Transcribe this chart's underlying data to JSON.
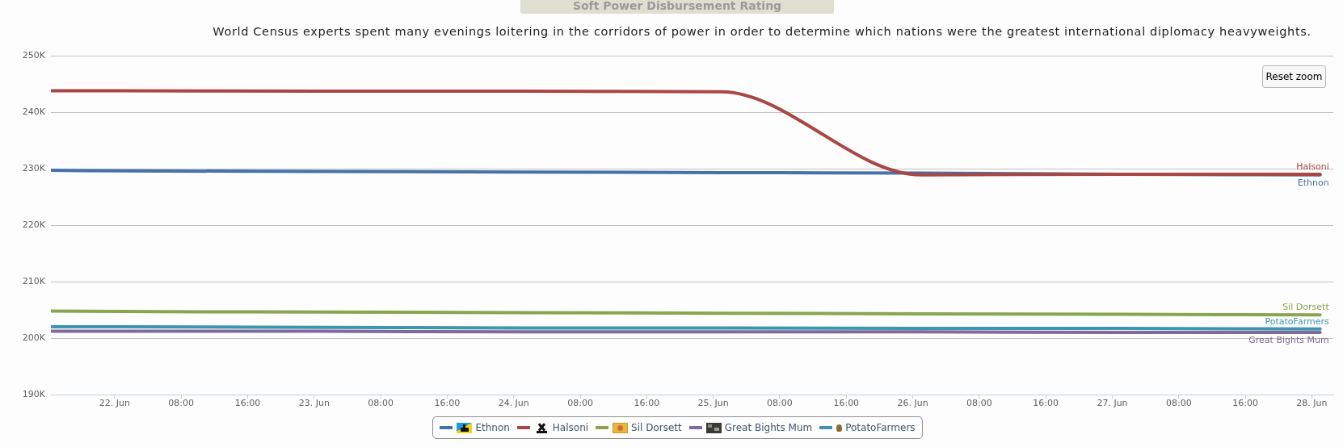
{
  "chart_data": {
    "type": "line",
    "title": "Soft Power Disbursement Rating",
    "subtitle": "World Census experts spent many evenings loitering in the corridors of power in order to determine which nations were the greatest international diplomacy heavyweights.",
    "annotations": [
      "Reset zoom"
    ],
    "x": [
      "--06-21T16:20",
      "--06-22T01:00",
      "--06-23T01:00",
      "--06-24T01:00",
      "--06-25T01:00",
      "--06-26T01:00",
      "--06-27T01:00",
      "--06-28T01:00"
    ],
    "series": [
      {
        "name": "Ethnon",
        "color": "#4572a7",
        "values": [
          229700,
          229600,
          229500,
          229400,
          229300,
          229200,
          229000,
          228900
        ]
      },
      {
        "name": "Halsoni",
        "color": "#aa4643",
        "values": [
          243800,
          243800,
          243700,
          243700,
          243600,
          228900,
          229000,
          229000
        ]
      },
      {
        "name": "Sil Dorsett",
        "color": "#89a54e",
        "values": [
          204800,
          204700,
          204600,
          204500,
          204400,
          204300,
          204200,
          204100
        ]
      },
      {
        "name": "Great Bights Mum",
        "color": "#80699b",
        "values": [
          201200,
          201200,
          201200,
          201100,
          201100,
          201100,
          201000,
          201000
        ]
      },
      {
        "name": "PotatoFarmers",
        "color": "#3d96ae",
        "values": [
          202000,
          202000,
          201900,
          201800,
          201800,
          201700,
          201700,
          201600
        ]
      }
    ],
    "xlim": [
      "--06-21T16:20",
      "--06-28T02:35"
    ],
    "xticks": [
      {
        "value": "--06-22",
        "label": "22. Jun"
      },
      {
        "value": "--06-22T08:00",
        "label": "08:00"
      },
      {
        "value": "--06-22T16:00",
        "label": "16:00"
      },
      {
        "value": "--06-23",
        "label": "23. Jun"
      },
      {
        "value": "--06-23T08:00",
        "label": "08:00"
      },
      {
        "value": "--06-23T16:00",
        "label": "16:00"
      },
      {
        "value": "--06-24",
        "label": "24. Jun"
      },
      {
        "value": "--06-24T08:00",
        "label": "08:00"
      },
      {
        "value": "--06-24T16:00",
        "label": "16:00"
      },
      {
        "value": "--06-25",
        "label": "25. Jun"
      },
      {
        "value": "--06-25T08:00",
        "label": "08:00"
      },
      {
        "value": "--06-25T16:00",
        "label": "16:00"
      },
      {
        "value": "--06-26",
        "label": "26. Jun"
      },
      {
        "value": "--06-26T08:00",
        "label": "08:00"
      },
      {
        "value": "--06-26T16:00",
        "label": "16:00"
      },
      {
        "value": "--06-27",
        "label": "27. Jun"
      },
      {
        "value": "--06-27T08:00",
        "label": "08:00"
      },
      {
        "value": "--06-27T16:00",
        "label": "16:00"
      },
      {
        "value": "--06-28",
        "label": "28. Jun"
      }
    ],
    "ylim": [
      190000,
      250000
    ],
    "yticks": [
      {
        "value": 190000,
        "label": "190K"
      },
      {
        "value": 200000,
        "label": "200K"
      },
      {
        "value": 210000,
        "label": "210K"
      },
      {
        "value": 220000,
        "label": "220K"
      },
      {
        "value": 230000,
        "label": "230K"
      },
      {
        "value": 240000,
        "label": "240K"
      },
      {
        "value": 250000,
        "label": "250K"
      }
    ],
    "grid": "y",
    "legend": "bottom"
  }
}
